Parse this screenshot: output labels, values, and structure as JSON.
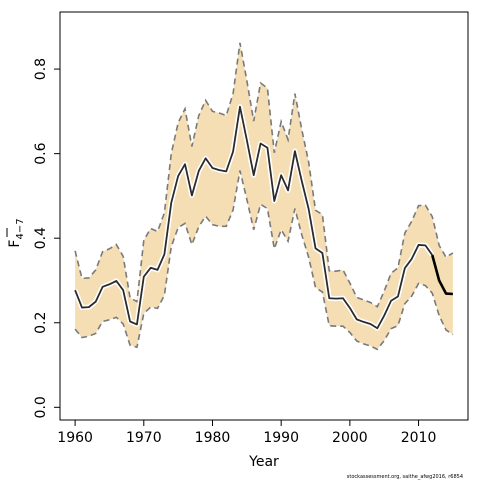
{
  "chart_data": {
    "type": "line",
    "title": "",
    "xlabel": "Year",
    "ylabel_main": "F",
    "ylabel_sub": "4−7",
    "xlim": [
      1957.8,
      2017.2
    ],
    "ylim": [
      -0.03,
      0.935
    ],
    "xticks": [
      1960,
      1970,
      1980,
      1990,
      2000,
      2010
    ],
    "yticks": [
      "0.0",
      "0.2",
      "0.4",
      "0.6",
      "0.8"
    ],
    "grid": false,
    "colors": {
      "band": "#f5deb3",
      "bound": "#7a7a7a",
      "line": "#2b2b2b",
      "line_last": "#000000"
    },
    "x": [
      1960,
      1961,
      1962,
      1963,
      1964,
      1965,
      1966,
      1967,
      1968,
      1969,
      1970,
      1971,
      1972,
      1973,
      1974,
      1975,
      1976,
      1977,
      1978,
      1979,
      1980,
      1981,
      1982,
      1983,
      1984,
      1985,
      1986,
      1987,
      1988,
      1989,
      1990,
      1991,
      1992,
      1993,
      1994,
      1995,
      1996,
      1997,
      1998,
      1999,
      2000,
      2001,
      2002,
      2003,
      2004,
      2005,
      2006,
      2007,
      2008,
      2009,
      2010,
      2011,
      2012,
      2013,
      2014,
      2015
    ],
    "series": [
      {
        "values": [
          0.277,
          0.236,
          0.237,
          0.25,
          0.285,
          0.291,
          0.299,
          0.277,
          0.203,
          0.196,
          0.309,
          0.33,
          0.325,
          0.362,
          0.484,
          0.547,
          0.575,
          0.501,
          0.559,
          0.589,
          0.566,
          0.561,
          0.558,
          0.605,
          0.711,
          0.632,
          0.549,
          0.624,
          0.614,
          0.488,
          0.549,
          0.513,
          0.606,
          0.535,
          0.469,
          0.376,
          0.365,
          0.258,
          0.257,
          0.258,
          0.235,
          0.208,
          0.202,
          0.197,
          0.187,
          0.217,
          0.252,
          0.262,
          0.329,
          0.351,
          0.384,
          0.383,
          0.36,
          0.3,
          0.269,
          0.268
        ]
      }
    ],
    "lower": [
      0.185,
      0.165,
      0.168,
      0.175,
      0.203,
      0.207,
      0.213,
      0.197,
      0.147,
      0.142,
      0.222,
      0.237,
      0.234,
      0.265,
      0.38,
      0.425,
      0.435,
      0.385,
      0.427,
      0.452,
      0.432,
      0.428,
      0.428,
      0.467,
      0.56,
      0.492,
      0.42,
      0.48,
      0.47,
      0.375,
      0.42,
      0.393,
      0.47,
      0.408,
      0.355,
      0.283,
      0.273,
      0.193,
      0.192,
      0.192,
      0.177,
      0.157,
      0.15,
      0.145,
      0.137,
      0.158,
      0.186,
      0.193,
      0.245,
      0.263,
      0.293,
      0.288,
      0.27,
      0.217,
      0.183,
      0.172
    ],
    "upper": [
      0.37,
      0.305,
      0.306,
      0.325,
      0.368,
      0.375,
      0.385,
      0.357,
      0.259,
      0.25,
      0.395,
      0.423,
      0.416,
      0.46,
      0.6,
      0.673,
      0.706,
      0.617,
      0.69,
      0.726,
      0.7,
      0.696,
      0.69,
      0.742,
      0.862,
      0.773,
      0.677,
      0.767,
      0.755,
      0.602,
      0.676,
      0.633,
      0.742,
      0.657,
      0.58,
      0.466,
      0.456,
      0.323,
      0.322,
      0.325,
      0.294,
      0.26,
      0.254,
      0.248,
      0.238,
      0.275,
      0.317,
      0.33,
      0.412,
      0.44,
      0.477,
      0.478,
      0.451,
      0.383,
      0.355,
      0.365
    ]
  },
  "footer": {
    "credit": "stockassessment.org, saithe_afwg2016, r6854"
  }
}
